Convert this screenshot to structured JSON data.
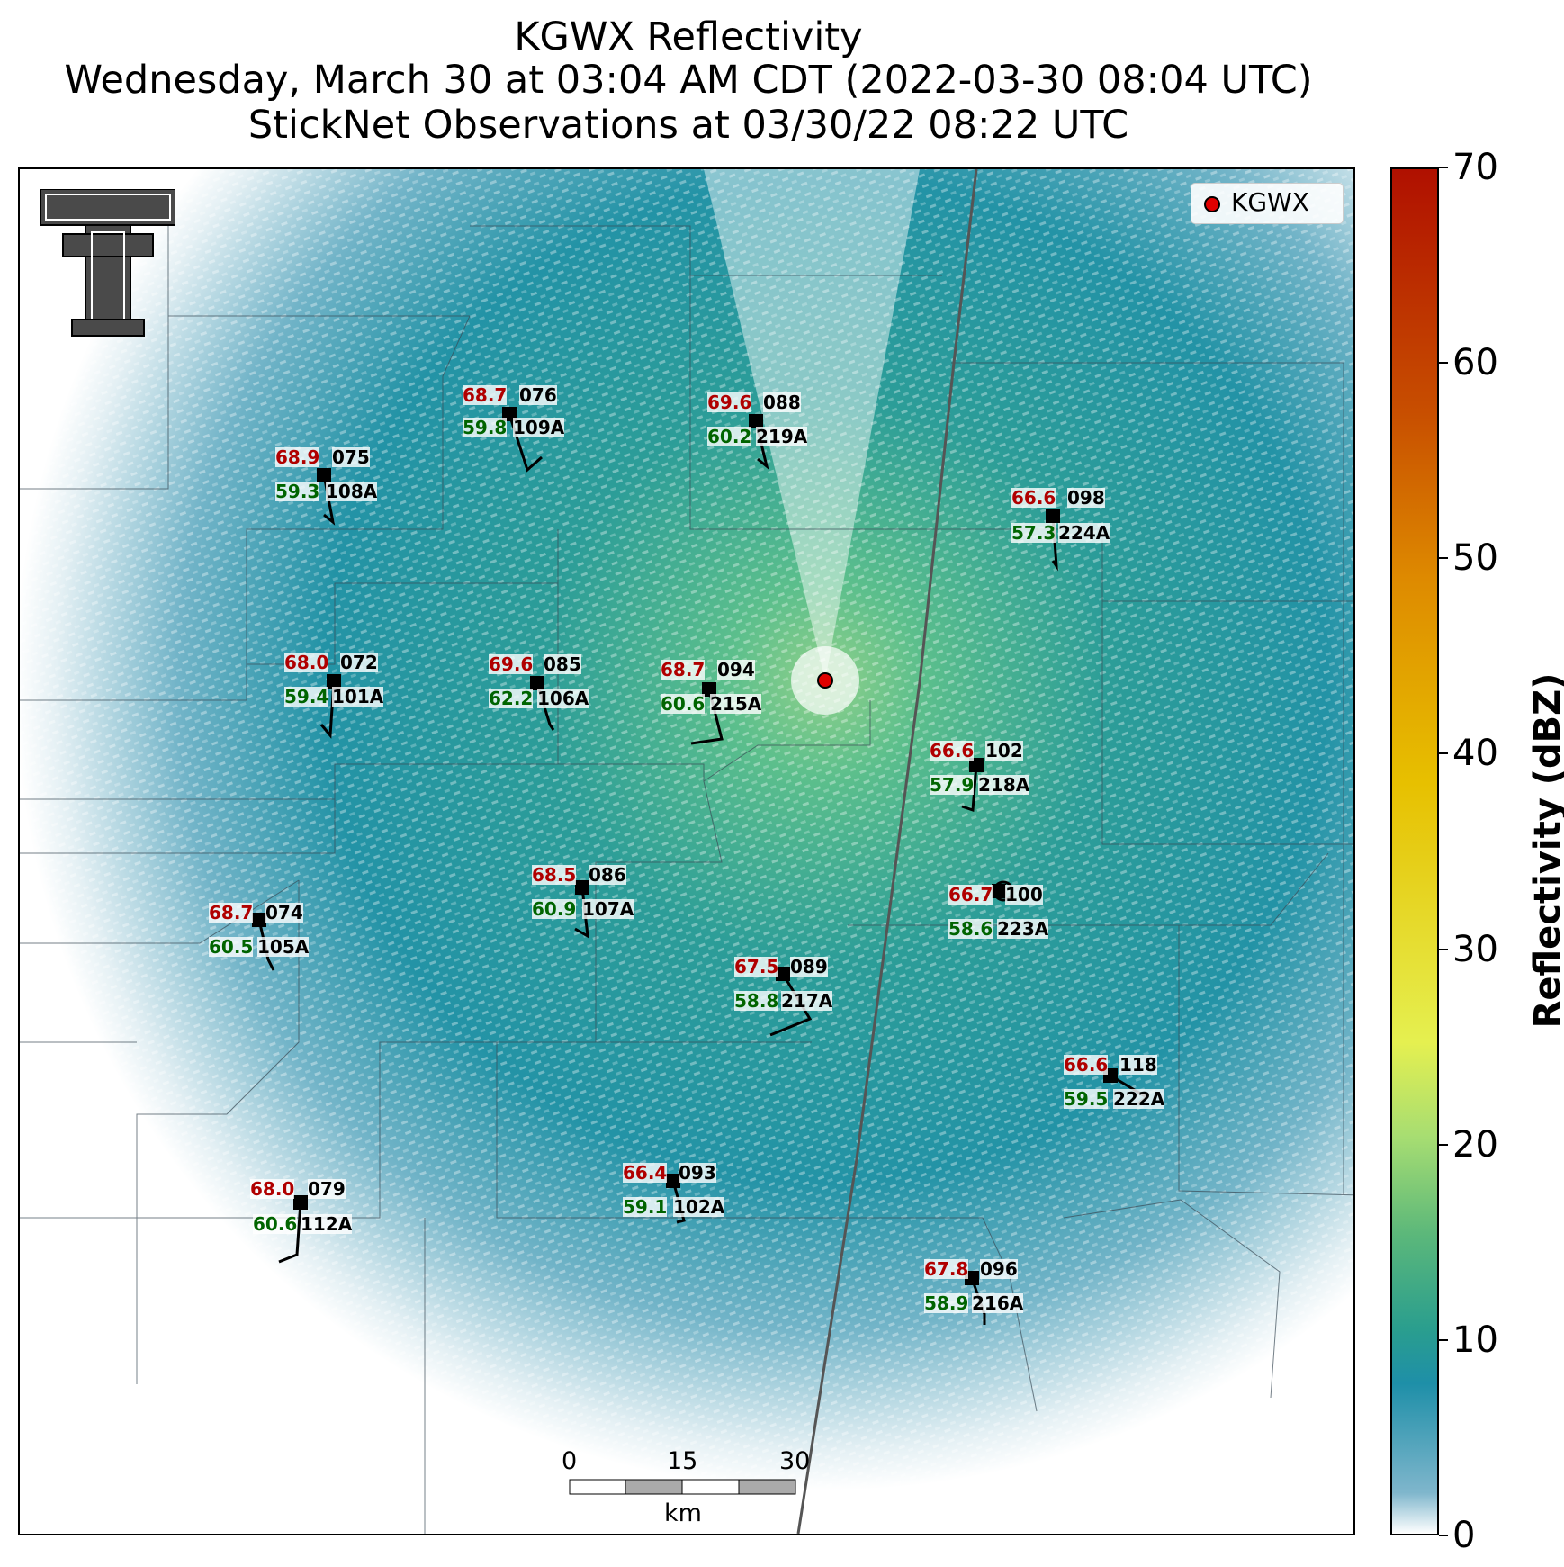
{
  "title": {
    "line1": "KGWX Reflectivity",
    "line2": "Wednesday, March 30 at 03:04 AM CDT (2022-03-30 08:04 UTC)",
    "line3": "StickNet Observations at 03/30/22 08:22 UTC"
  },
  "legend": {
    "label": "KGWX",
    "marker_color": "#e00000"
  },
  "colorbar": {
    "label": "Reflectivity (dBZ)",
    "ticks": [
      "0",
      "10",
      "20",
      "30",
      "40",
      "50",
      "60",
      "70"
    ]
  },
  "scale_bar": {
    "ticks": [
      "0",
      "15",
      "30"
    ],
    "unit": "km"
  },
  "colors": {
    "temp": "#b00000",
    "dewpoint": "#006400",
    "radar_site": "#e00000"
  },
  "stations": [
    {
      "temp": "68.7",
      "id": "076",
      "dew": "59.8",
      "code": "109A"
    },
    {
      "temp": "69.6",
      "id": "088",
      "dew": "60.2",
      "code": "219A"
    },
    {
      "temp": "68.9",
      "id": "075",
      "dew": "59.3",
      "code": "108A"
    },
    {
      "temp": "66.6",
      "id": "098",
      "dew": "57.3",
      "code": "224A"
    },
    {
      "temp": "68.0",
      "id": "072",
      "dew": "59.4",
      "code": "101A"
    },
    {
      "temp": "69.6",
      "id": "085",
      "dew": "62.2",
      "code": "106A"
    },
    {
      "temp": "68.7",
      "id": "094",
      "dew": "60.6",
      "code": "215A"
    },
    {
      "temp": "66.6",
      "id": "102",
      "dew": "57.9",
      "code": "218A"
    },
    {
      "temp": "68.5",
      "id": "086",
      "dew": "60.9",
      "code": "107A"
    },
    {
      "temp": "66.7",
      "id": "100",
      "dew": "58.6",
      "code": "223A"
    },
    {
      "temp": "68.7",
      "id": "074",
      "dew": "60.5",
      "code": "105A"
    },
    {
      "temp": "67.5",
      "id": "089",
      "dew": "58.8",
      "code": "217A"
    },
    {
      "temp": "66.6",
      "id": "118",
      "dew": "59.5",
      "code": "222A"
    },
    {
      "temp": "66.4",
      "id": "093",
      "dew": "59.1",
      "code": "102A"
    },
    {
      "temp": "68.0",
      "id": "079",
      "dew": "60.6",
      "code": "112A"
    },
    {
      "temp": "67.8",
      "id": "096",
      "dew": "58.9",
      "code": "216A"
    }
  ]
}
